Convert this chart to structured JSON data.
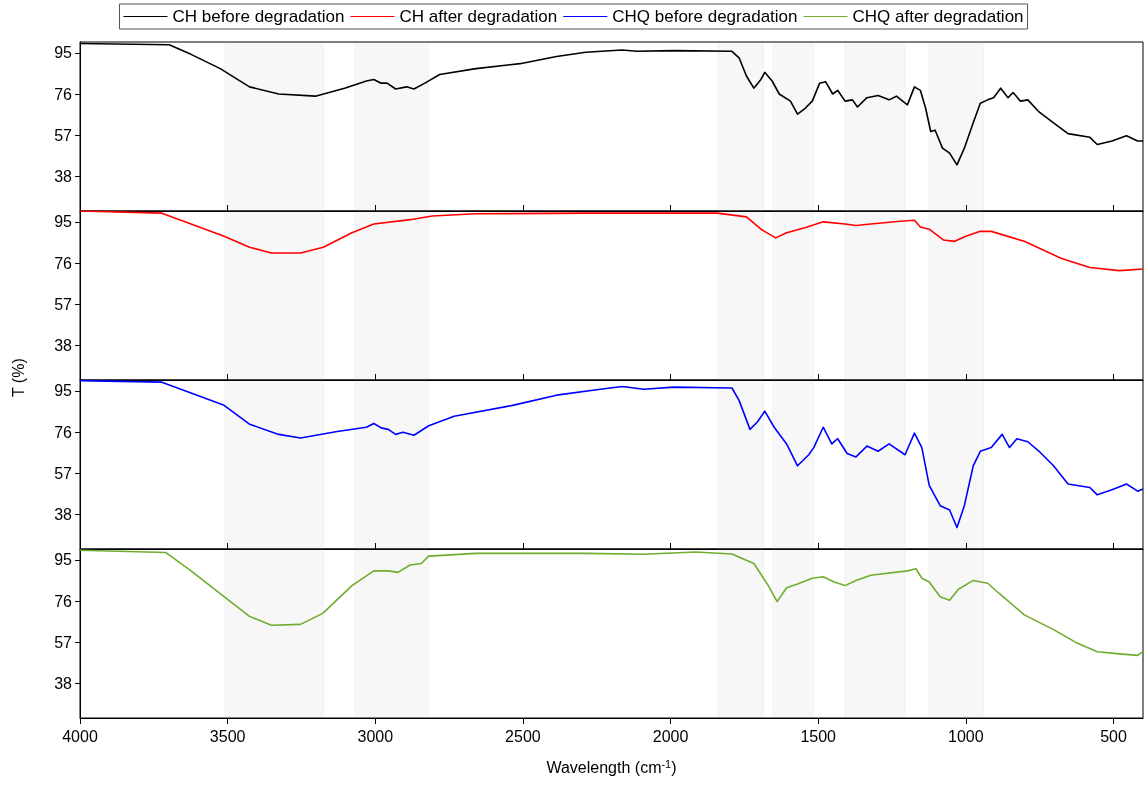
{
  "chart_data": [
    {
      "type": "line",
      "legend": "top",
      "tick_labels": "y",
      "xlim": [
        4000,
        400
      ],
      "xticks": [
        4000,
        3500,
        3000,
        2500,
        2000,
        1500,
        1000,
        500
      ],
      "ylim": [
        22,
        100
      ],
      "yticks": [
        38,
        57,
        76,
        95
      ],
      "bands": [
        {
          "axis": "x",
          "from": 3510,
          "to": 3175
        },
        {
          "axis": "x",
          "from": 3070,
          "to": 2820
        },
        {
          "axis": "x",
          "from": 1840,
          "to": 1685
        },
        {
          "axis": "x",
          "from": 1655,
          "to": 1515
        },
        {
          "axis": "x",
          "from": 1410,
          "to": 1205
        },
        {
          "axis": "x",
          "from": 1125,
          "to": 940
        }
      ],
      "series": [
        {
          "name": "CH before degradation",
          "color": "#000000",
          "x": [
            4000,
            3698,
            3624,
            3525,
            3426,
            3327,
            3203,
            3104,
            3030,
            3005,
            2980,
            2960,
            2931,
            2894,
            2869,
            2832,
            2782,
            2659,
            2510,
            2386,
            2287,
            2164,
            2114,
            1990,
            1792,
            1768,
            1743,
            1718,
            1694,
            1681,
            1656,
            1632,
            1594,
            1570,
            1545,
            1520,
            1495,
            1475,
            1451,
            1434,
            1409,
            1384,
            1367,
            1335,
            1297,
            1260,
            1235,
            1198,
            1174,
            1154,
            1136,
            1119,
            1104,
            1079,
            1055,
            1030,
            1005,
            975,
            951,
            926,
            906,
            882,
            857,
            840,
            815,
            790,
            752,
            703,
            654,
            580,
            555,
            505,
            456,
            418,
            400
          ],
          "values": [
            99.3,
            98.7,
            94.3,
            87.7,
            79.3,
            76,
            75,
            78.7,
            82,
            82.7,
            81,
            81,
            78.3,
            79.3,
            78.3,
            81,
            85,
            87.7,
            90,
            93.3,
            95.3,
            96.3,
            95.7,
            96,
            95.7,
            92.7,
            84.3,
            78.7,
            82.7,
            86,
            82,
            76,
            72.7,
            66.7,
            69.3,
            72.7,
            81,
            81.7,
            76,
            77.7,
            72.7,
            73.3,
            70,
            74.3,
            75.3,
            73.3,
            75,
            71,
            79.3,
            77.7,
            69.3,
            58.7,
            59.3,
            51,
            48.7,
            43.3,
            51,
            62.7,
            71.7,
            73.3,
            74.3,
            78.7,
            74.3,
            76.7,
            72.7,
            73.3,
            67.7,
            62.7,
            57.7,
            56,
            52.7,
            54.3,
            56.7,
            54.3,
            54.3
          ]
        }
      ]
    },
    {
      "type": "line",
      "legend": "top",
      "tick_labels": "y",
      "xlim": [
        4000,
        400
      ],
      "xticks": [
        4000,
        3500,
        3000,
        2500,
        2000,
        1500,
        1000,
        500
      ],
      "ylim": [
        22,
        100
      ],
      "yticks": [
        38,
        57,
        76,
        95
      ],
      "ylabel": "T (%)",
      "bands": [
        {
          "axis": "x",
          "from": 3510,
          "to": 3175
        },
        {
          "axis": "x",
          "from": 3070,
          "to": 2820
        },
        {
          "axis": "x",
          "from": 1840,
          "to": 1685
        },
        {
          "axis": "x",
          "from": 1655,
          "to": 1515
        },
        {
          "axis": "x",
          "from": 1410,
          "to": 1205
        },
        {
          "axis": "x",
          "from": 1125,
          "to": 940
        }
      ],
      "series": [
        {
          "name": "CH after degradation",
          "color": "#ff0000",
          "x": [
            4000,
            3723,
            3624,
            3512,
            3426,
            3352,
            3253,
            3176,
            3079,
            3005,
            2882,
            2807,
            2659,
            2287,
            2040,
            1842,
            1743,
            1694,
            1644,
            1607,
            1545,
            1483,
            1409,
            1372,
            1322,
            1223,
            1174,
            1154,
            1124,
            1075,
            1038,
            1000,
            951,
            914,
            802,
            678,
            580,
            480,
            400
          ],
          "values": [
            100,
            99,
            94,
            88.3,
            83.3,
            80.6,
            80.6,
            83.3,
            90,
            94,
            96,
            97.7,
            98.7,
            99,
            99,
            99,
            97.3,
            91.6,
            87.6,
            90,
            92.3,
            95,
            94,
            93.3,
            94,
            95.3,
            95.7,
            92.6,
            91.6,
            86.6,
            86,
            88.3,
            90.6,
            90.6,
            86,
            78.2,
            73.9,
            72.5,
            73.2
          ]
        }
      ]
    },
    {
      "type": "line",
      "legend": "top",
      "tick_labels": "y",
      "xlim": [
        4000,
        400
      ],
      "xticks": [
        4000,
        3500,
        3000,
        2500,
        2000,
        1500,
        1000,
        500
      ],
      "ylim": [
        22,
        100
      ],
      "yticks": [
        38,
        57,
        76,
        95
      ],
      "bands": [
        {
          "axis": "x",
          "from": 3510,
          "to": 3175
        },
        {
          "axis": "x",
          "from": 3070,
          "to": 2820
        },
        {
          "axis": "x",
          "from": 1840,
          "to": 1685
        },
        {
          "axis": "x",
          "from": 1655,
          "to": 1515
        },
        {
          "axis": "x",
          "from": 1410,
          "to": 1205
        },
        {
          "axis": "x",
          "from": 1125,
          "to": 940
        }
      ],
      "series": [
        {
          "name": "CHQ before degradation",
          "color": "#0000ff",
          "x": [
            4000,
            3723,
            3624,
            3512,
            3426,
            3327,
            3253,
            3129,
            3030,
            3005,
            2980,
            2956,
            2931,
            2906,
            2869,
            2819,
            2733,
            2535,
            2386,
            2238,
            2164,
            2090,
            1990,
            1792,
            1768,
            1731,
            1706,
            1681,
            1649,
            1607,
            1570,
            1532,
            1515,
            1483,
            1454,
            1434,
            1402,
            1372,
            1335,
            1297,
            1260,
            1206,
            1174,
            1149,
            1124,
            1087,
            1055,
            1030,
            1005,
            975,
            951,
            914,
            877,
            852,
            827,
            790,
            752,
            703,
            654,
            580,
            555,
            505,
            456,
            418,
            400
          ],
          "values": [
            99.7,
            99,
            94,
            88.3,
            79.6,
            74.9,
            73.2,
            76.2,
            78.2,
            79.9,
            77.9,
            77.2,
            74.9,
            75.9,
            74.5,
            78.9,
            83.3,
            88.3,
            93,
            95.7,
            97,
            95.7,
            96.7,
            96.3,
            90.6,
            77.2,
            80.6,
            85.6,
            78.2,
            70.5,
            60.4,
            65.5,
            68.8,
            78.2,
            70.5,
            72.9,
            66.1,
            64.5,
            69.5,
            67.1,
            70.5,
            65.5,
            75.5,
            68.8,
            51.4,
            42,
            40,
            31.9,
            42,
            60.4,
            67.1,
            68.8,
            74.9,
            68.8,
            72.9,
            71.5,
            67.1,
            60.4,
            52,
            50.4,
            47,
            49.4,
            52,
            48.7,
            49.7
          ]
        }
      ]
    },
    {
      "type": "line",
      "legend": "top",
      "xlabel": "Wavelength (cm$^{-1}$)",
      "xlim": [
        4000,
        400
      ],
      "xticks": [
        4000,
        3500,
        3000,
        2500,
        2000,
        1500,
        1000,
        500
      ],
      "ylim": [
        22,
        100
      ],
      "yticks": [
        38,
        57,
        76,
        95
      ],
      "bands": [
        {
          "axis": "x",
          "from": 3510,
          "to": 3175
        },
        {
          "axis": "x",
          "from": 3070,
          "to": 2820
        },
        {
          "axis": "x",
          "from": 1840,
          "to": 1685
        },
        {
          "axis": "x",
          "from": 1655,
          "to": 1515
        },
        {
          "axis": "x",
          "from": 1410,
          "to": 1205
        },
        {
          "axis": "x",
          "from": 1125,
          "to": 940
        }
      ],
      "series": [
        {
          "name": "CHQ after degradation",
          "color": "#70ad2f",
          "x": [
            4000,
            3710,
            3624,
            3512,
            3426,
            3352,
            3253,
            3178,
            3079,
            3005,
            2956,
            2923,
            2882,
            2844,
            2819,
            2659,
            2287,
            2090,
            1916,
            1792,
            1718,
            1669,
            1639,
            1607,
            1570,
            1520,
            1483,
            1446,
            1409,
            1372,
            1322,
            1198,
            1169,
            1149,
            1124,
            1087,
            1055,
            1025,
            975,
            926,
            889,
            802,
            703,
            629,
            555,
            480,
            418,
            400
          ],
          "values": [
            99.4,
            98.4,
            89.9,
            78,
            68.9,
            64.8,
            65.2,
            70.3,
            83.1,
            89.9,
            89.9,
            89.2,
            92.6,
            93.3,
            96.7,
            98,
            98,
            97.6,
            98.6,
            97.7,
            93.3,
            83.1,
            75.7,
            82.1,
            83.8,
            86.5,
            87.2,
            84.8,
            83.1,
            85.5,
            87.9,
            89.9,
            90.9,
            86.5,
            84.8,
            78,
            76.4,
            81.4,
            85.5,
            84.2,
            79.7,
            69.6,
            62.8,
            57,
            52.6,
            51.6,
            50.9,
            52.6
          ]
        }
      ]
    }
  ]
}
